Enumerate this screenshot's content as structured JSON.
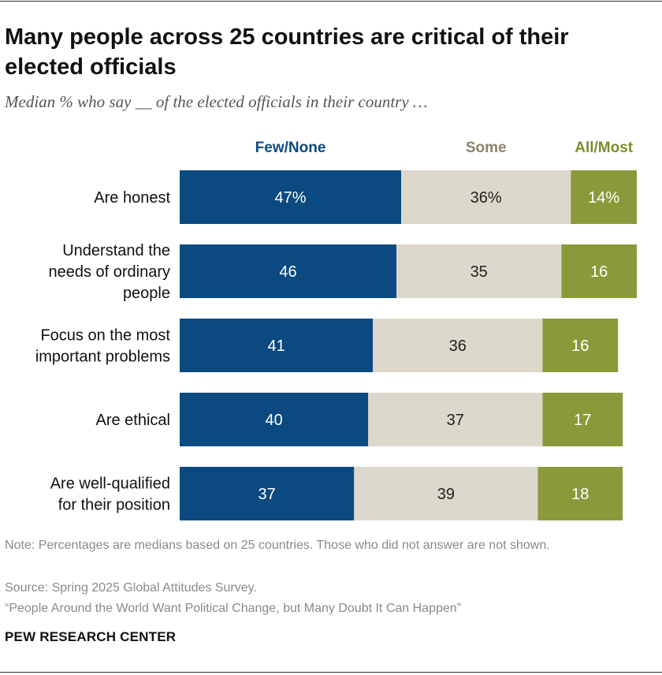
{
  "title": "Many people across 25 countries are critical of their elected officials",
  "subtitle": "Median % who say __ of the elected officials in their country …",
  "note": "Note: Percentages are medians based on 25 countries. Those who did not answer are not shown.",
  "source": "Source: Spring 2025 Global Attitudes Survey.",
  "report": "“People Around the World Want Political Change, but Many Doubt It Can Happen”",
  "brand": "PEW RESEARCH CENTER",
  "colors": {
    "few_none": "#0b4a80",
    "some": "#dcd8cb",
    "all_most": "#8a9a3a",
    "few_none_label": "#0b4a80",
    "some_label": "#8c846a",
    "all_most_label": "#7e8e2a"
  },
  "chart_data": {
    "type": "bar",
    "orientation": "horizontal",
    "stacked": true,
    "categories": [
      "Are honest",
      "Understand the needs of ordinary people",
      "Focus on the most important problems",
      "Are ethical",
      "Are well-qualified for their position"
    ],
    "category_label_lines": [
      [
        "Are honest"
      ],
      [
        "Understand the",
        "needs of ordinary",
        "people"
      ],
      [
        "Focus on the most",
        "important problems"
      ],
      [
        "Are ethical"
      ],
      [
        "Are well-qualified",
        "for their position"
      ]
    ],
    "series": [
      {
        "name": "Few/None",
        "values": [
          47,
          46,
          41,
          40,
          37
        ],
        "labels": [
          "47%",
          "46",
          "41",
          "40",
          "37"
        ]
      },
      {
        "name": "Some",
        "values": [
          36,
          35,
          36,
          37,
          39
        ],
        "labels": [
          "36%",
          "35",
          "36",
          "37",
          "39"
        ]
      },
      {
        "name": "All/Most",
        "values": [
          14,
          16,
          16,
          17,
          18
        ],
        "labels": [
          "14%",
          "16",
          "16",
          "17",
          "18"
        ]
      }
    ],
    "legend_position": "top",
    "xlim": [
      0,
      100
    ],
    "grid": false
  }
}
